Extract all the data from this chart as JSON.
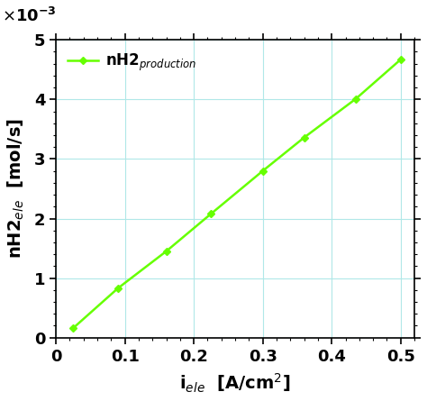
{
  "x": [
    0.025,
    0.09,
    0.16,
    0.225,
    0.3,
    0.36,
    0.435,
    0.5
  ],
  "y": [
    0.00016,
    0.00083,
    0.00145,
    0.00208,
    0.0028,
    0.00336,
    0.00401,
    0.00467
  ],
  "line_color": "#66ff00",
  "marker": "D",
  "marker_size": 4,
  "line_width": 1.8,
  "xlabel": "i$_{ele}$  [A/cm$^2$]",
  "ylabel": "nH2$_{ele}$  [mol/s]",
  "legend_label": "nH2$_{production}$",
  "xlim": [
    0.0,
    0.52
  ],
  "ylim": [
    0.0,
    0.005
  ],
  "xticks": [
    0.0,
    0.1,
    0.2,
    0.3,
    0.4,
    0.5
  ],
  "yticks": [
    0.0,
    0.001,
    0.002,
    0.003,
    0.004,
    0.005
  ],
  "ytick_labels": [
    "0",
    "1",
    "2",
    "3",
    "4",
    "5"
  ],
  "xtick_labels": [
    "0",
    "0.1",
    "0.2",
    "0.3",
    "0.4",
    "0.5"
  ],
  "grid_color": "#b0e8e8",
  "background_color": "#ffffff",
  "figsize": [
    4.74,
    4.45
  ],
  "dpi": 100,
  "tick_fontsize": 13,
  "label_fontsize": 14,
  "legend_fontsize": 12
}
